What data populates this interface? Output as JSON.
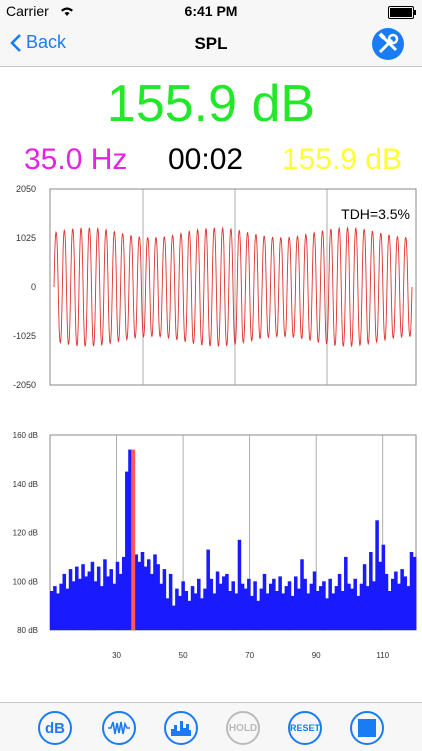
{
  "status": {
    "carrier": "Carrier",
    "time": "6:41 PM"
  },
  "nav": {
    "back_label": "Back",
    "title": "SPL"
  },
  "readouts": {
    "main_level": "155.9 dB",
    "frequency": "35.0 Hz",
    "elapsed": "00:02",
    "peak_level": "155.9 dB"
  },
  "waveform": {
    "annotation": "TDH=3.5%",
    "y_ticks": [
      "2050",
      "1025",
      "0",
      "-1025",
      "-2050"
    ],
    "line_color": "#e03030"
  },
  "spectrum": {
    "y_ticks": [
      "160 dB",
      "140 dB",
      "120 dB",
      "100 dB",
      "80 dB"
    ],
    "x_ticks": [
      "30",
      "50",
      "70",
      "90",
      "110"
    ],
    "bar_color": "#1a1aff",
    "peak_color": "#ff5a5a"
  },
  "toolbar": {
    "db_label": "dB",
    "hold_label": "HOLD",
    "reset_label": "RESET"
  },
  "colors": {
    "accent": "#1a7cf4",
    "main_level": "#23e82a",
    "frequency": "#e523e5",
    "peak_level": "#ffff33"
  },
  "chart_data": [
    {
      "type": "line",
      "title": "",
      "annotation": "TDH=3.5%",
      "ylim": [
        -2050,
        2050
      ],
      "yticks": [
        2050,
        1025,
        0,
        -1025,
        -2050
      ],
      "series": [
        {
          "frequency_hz": 35.0,
          "amplitude": 1300,
          "cycles_shown": 43
        }
      ]
    },
    {
      "type": "bar",
      "title": "",
      "ylim": [
        80,
        160
      ],
      "yticks": [
        160,
        140,
        120,
        100,
        80
      ],
      "xlim": [
        10,
        120
      ],
      "xticks": [
        30,
        50,
        70,
        90,
        110
      ],
      "peak": {
        "x": 35,
        "value": 154
      },
      "values": [
        96,
        98,
        95,
        99,
        103,
        97,
        105,
        100,
        106,
        101,
        107,
        102,
        104,
        108,
        100,
        106,
        98,
        109,
        102,
        105,
        99,
        108,
        103,
        110,
        145,
        154,
        149,
        111,
        108,
        112,
        106,
        109,
        103,
        111,
        107,
        99,
        105,
        93,
        103,
        90,
        97,
        94,
        100,
        96,
        92,
        98,
        95,
        101,
        93,
        97,
        113,
        101,
        95,
        104,
        99,
        102,
        103,
        96,
        100,
        95,
        117,
        99,
        97,
        101,
        94,
        100,
        92,
        97,
        103,
        95,
        99,
        101,
        96,
        102,
        95,
        98,
        100,
        94,
        102,
        97,
        109,
        101,
        95,
        99,
        104,
        96,
        98,
        100,
        93,
        101,
        95,
        98,
        103,
        96,
        110,
        99,
        97,
        101,
        94,
        99,
        107,
        98,
        112,
        100,
        125,
        108,
        115,
        103,
        96,
        101,
        104,
        99,
        105,
        102,
        98,
        112,
        110
      ]
    }
  ]
}
